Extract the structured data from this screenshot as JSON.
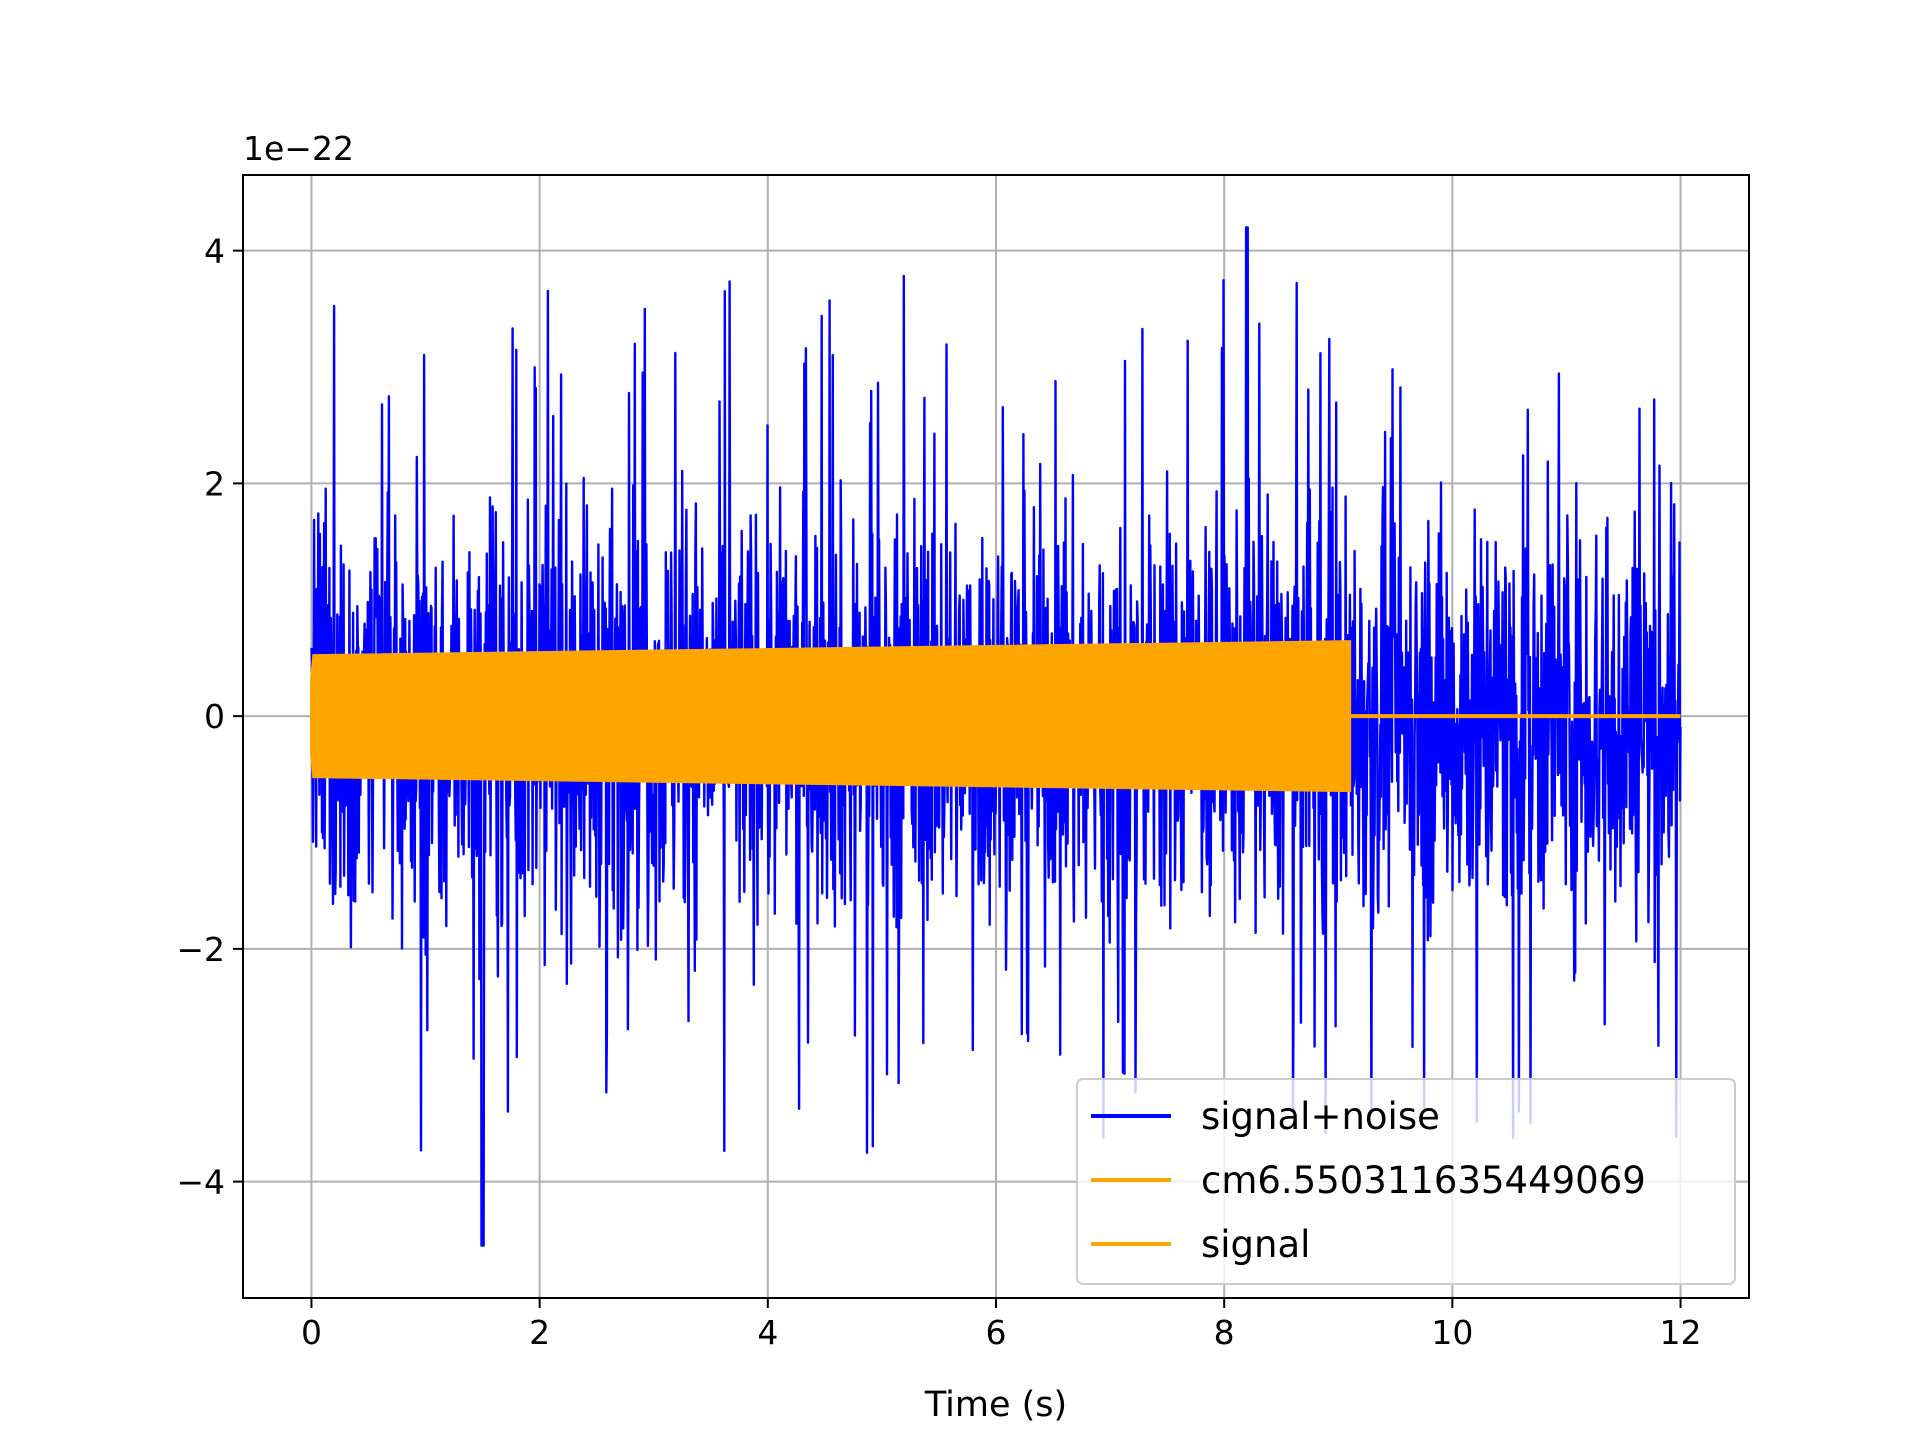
{
  "chart_data": {
    "type": "line",
    "title": "",
    "xlabel": "Time (s)",
    "ylabel": "",
    "y_offset_text": "1e−22",
    "xlim": [
      -0.6,
      12.6
    ],
    "ylim": [
      -5.0,
      4.65
    ],
    "grid": true,
    "legend_position": "lower-right",
    "x_ticks": [
      0,
      2,
      4,
      6,
      8,
      10,
      12
    ],
    "x_tick_labels": [
      "0",
      "2",
      "4",
      "6",
      "8",
      "10",
      "12"
    ],
    "y_ticks": [
      -4,
      -2,
      0,
      2,
      4
    ],
    "y_tick_labels": [
      "−4",
      "−2",
      "0",
      "2",
      "4"
    ],
    "series": [
      {
        "name": "signal+noise",
        "color": "#0000ff",
        "kind": "noise",
        "x_range": [
          0,
          12
        ],
        "typical_peak": 2.5,
        "max_peak": 4.2,
        "min_trough": -4.55
      },
      {
        "name": "cm6.550311635449069",
        "color": "#ffa500",
        "kind": "envelope",
        "x_range": [
          0,
          9.1
        ],
        "amplitude_start": 0.52,
        "amplitude_end": 0.64
      },
      {
        "name": "signal",
        "color": "#ffa500",
        "kind": "flat",
        "x_range": [
          9.1,
          12
        ],
        "value": 0
      }
    ]
  }
}
